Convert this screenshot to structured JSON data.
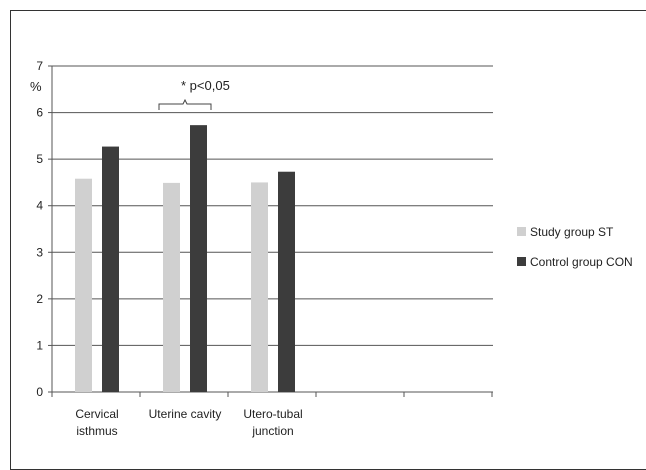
{
  "chart_data": {
    "type": "bar",
    "ylabel": "%",
    "ylim": [
      0,
      7
    ],
    "yticks": [
      "0",
      "1",
      "2",
      "3",
      "4",
      "5",
      "6",
      "7"
    ],
    "categories": [
      [
        "Cervical",
        "isthmus"
      ],
      [
        "Uterine cavity"
      ],
      [
        "Utero-tubal",
        "junction"
      ]
    ],
    "series": [
      {
        "name": "Study group ST",
        "color": "#d0d0d0",
        "values": [
          4.58,
          4.49,
          4.5
        ]
      },
      {
        "name": "Control group CON",
        "color": "#3c3c3c",
        "values": [
          5.27,
          5.73,
          4.73
        ]
      }
    ],
    "grid": true,
    "legend": "right",
    "annotation": {
      "text": "* p<0,05",
      "category_index": 1
    }
  }
}
